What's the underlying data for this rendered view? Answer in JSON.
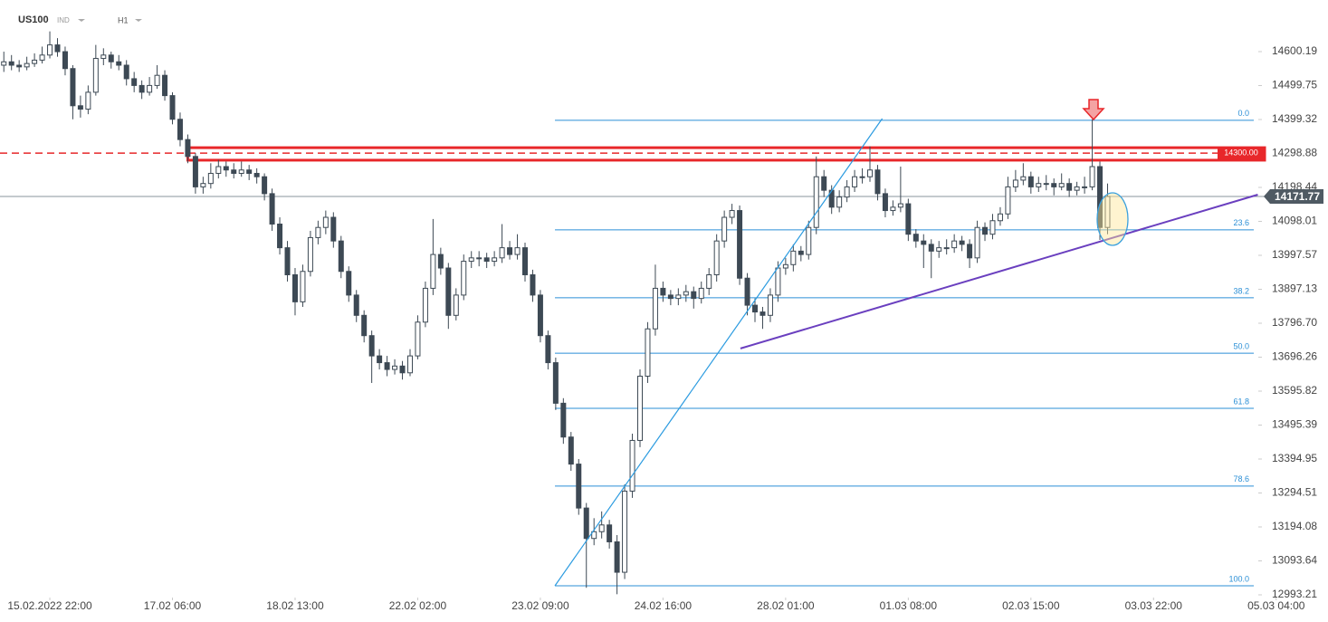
{
  "chart_data": {
    "type": "candlestick",
    "title": "US100",
    "instrument_type": "IND",
    "timeframe": "H1",
    "ylim": [
      12985.18,
      14752.84
    ],
    "yticks": [
      14600.19,
      14499.75,
      14399.32,
      14298.88,
      14198.44,
      14098.01,
      13997.57,
      13897.13,
      {
        "value": 13796.7,
        "label": "13796.70"
      },
      13696.26,
      13595.82,
      13495.39,
      13394.95,
      13294.51,
      13194.08,
      13093.64,
      12993.21
    ],
    "xlim": [
      -0.5,
      166.5
    ],
    "xticks": [
      {
        "value": 6,
        "label": "15.02.2022 22:00"
      },
      {
        "value": 22,
        "label": "17.02 06:00"
      },
      {
        "value": 38,
        "label": "18.02 13:00"
      },
      {
        "value": 54,
        "label": "22.02 02:00"
      },
      {
        "value": 70,
        "label": "23.02 09:00"
      },
      {
        "value": 86,
        "label": "24.02 16:00"
      },
      {
        "value": 102,
        "label": "28.02 01:00"
      },
      {
        "value": 118,
        "label": "01.03 08:00"
      },
      {
        "value": 134,
        "label": "02.03 15:00"
      },
      {
        "value": 150,
        "label": "03.03 22:00"
      },
      {
        "value": 166,
        "label": "05.03 04:00"
      }
    ],
    "up_color": "#ffffff",
    "down_color": "#3d4954",
    "wick_color": "#3d4954",
    "candles": [
      [
        14560,
        14600,
        14540,
        14570
      ],
      [
        14570,
        14590,
        14545,
        14560
      ],
      [
        14560,
        14575,
        14540,
        14555
      ],
      [
        14555,
        14585,
        14545,
        14565
      ],
      [
        14565,
        14595,
        14555,
        14575
      ],
      [
        14575,
        14615,
        14565,
        14590
      ],
      [
        14590,
        14660,
        14580,
        14620
      ],
      [
        14620,
        14640,
        14585,
        14600
      ],
      [
        14600,
        14615,
        14530,
        14550
      ],
      [
        14550,
        14560,
        14400,
        14440
      ],
      [
        14440,
        14470,
        14405,
        14430
      ],
      [
        14430,
        14500,
        14415,
        14480
      ],
      [
        14480,
        14620,
        14470,
        14580
      ],
      [
        14580,
        14610,
        14560,
        14590
      ],
      [
        14590,
        14600,
        14550,
        14570
      ],
      [
        14570,
        14590,
        14545,
        14560
      ],
      [
        14560,
        14575,
        14500,
        14520
      ],
      [
        14520,
        14540,
        14480,
        14500
      ],
      [
        14500,
        14515,
        14460,
        14480
      ],
      [
        14480,
        14525,
        14470,
        14500
      ],
      [
        14500,
        14560,
        14490,
        14530
      ],
      [
        14530,
        14545,
        14455,
        14470
      ],
      [
        14470,
        14480,
        14385,
        14400
      ],
      [
        14400,
        14420,
        14320,
        14340
      ],
      [
        14340,
        14355,
        14270,
        14290
      ],
      [
        14290,
        14300,
        14180,
        14200
      ],
      [
        14200,
        14230,
        14180,
        14210
      ],
      [
        14210,
        14270,
        14195,
        14240
      ],
      [
        14240,
        14280,
        14225,
        14260
      ],
      [
        14260,
        14275,
        14230,
        14250
      ],
      [
        14250,
        14270,
        14225,
        14240
      ],
      [
        14240,
        14275,
        14230,
        14250
      ],
      [
        14250,
        14265,
        14220,
        14240
      ],
      [
        14240,
        14255,
        14210,
        14230
      ],
      [
        14230,
        14240,
        14160,
        14180
      ],
      [
        14180,
        14195,
        14070,
        14090
      ],
      [
        14090,
        14110,
        14000,
        14020
      ],
      [
        14020,
        14040,
        13920,
        13940
      ],
      [
        13940,
        13960,
        13820,
        13860
      ],
      [
        13860,
        13970,
        13845,
        13950
      ],
      [
        13950,
        14070,
        13935,
        14050
      ],
      [
        14050,
        14100,
        14030,
        14080
      ],
      [
        14080,
        14130,
        14060,
        14110
      ],
      [
        14110,
        14125,
        14020,
        14040
      ],
      [
        14040,
        14055,
        13930,
        13950
      ],
      [
        13950,
        13965,
        13860,
        13880
      ],
      [
        13880,
        13895,
        13800,
        13820
      ],
      [
        13820,
        13835,
        13740,
        13760
      ],
      [
        13760,
        13775,
        13620,
        13700
      ],
      [
        13700,
        13720,
        13660,
        13680
      ],
      [
        13680,
        13700,
        13640,
        13660
      ],
      [
        13660,
        13690,
        13645,
        13670
      ],
      [
        13670,
        13685,
        13630,
        13650
      ],
      [
        13650,
        13720,
        13640,
        13700
      ],
      [
        13700,
        13820,
        13690,
        13800
      ],
      [
        13800,
        13920,
        13785,
        13900
      ],
      [
        13900,
        14105,
        13880,
        14000
      ],
      [
        14000,
        14020,
        13940,
        13960
      ],
      [
        13960,
        13975,
        13780,
        13820
      ],
      [
        13820,
        13900,
        13805,
        13880
      ],
      [
        13880,
        14000,
        13865,
        13980
      ],
      [
        13980,
        14010,
        13960,
        13990
      ],
      [
        13990,
        14010,
        13965,
        13990
      ],
      [
        13990,
        14005,
        13960,
        13980
      ],
      [
        13980,
        14010,
        13965,
        13990
      ],
      [
        13990,
        14090,
        13975,
        14020
      ],
      [
        14020,
        14040,
        13985,
        14000
      ],
      [
        14000,
        14060,
        13985,
        14020
      ],
      [
        14020,
        14035,
        13920,
        13940
      ],
      [
        13940,
        13955,
        13860,
        13880
      ],
      [
        13880,
        13895,
        13740,
        13760
      ],
      [
        13760,
        13775,
        13660,
        13680
      ],
      [
        13680,
        13695,
        13540,
        13560
      ],
      [
        13560,
        13575,
        13440,
        13460
      ],
      [
        13460,
        13475,
        13360,
        13380
      ],
      [
        13380,
        13395,
        13230,
        13250
      ],
      [
        13250,
        13265,
        13014,
        13160
      ],
      [
        13160,
        13220,
        13140,
        13180
      ],
      [
        13180,
        13240,
        13160,
        13200
      ],
      [
        13200,
        13215,
        13130,
        13150
      ],
      [
        13150,
        13170,
        12995,
        13060
      ],
      [
        13060,
        13320,
        13040,
        13300
      ],
      [
        13300,
        13470,
        13280,
        13450
      ],
      [
        13450,
        13660,
        13430,
        13640
      ],
      [
        13640,
        13800,
        13620,
        13780
      ],
      [
        13780,
        13970,
        13760,
        13900
      ],
      [
        13900,
        13920,
        13860,
        13880
      ],
      [
        13880,
        13895,
        13850,
        13870
      ],
      [
        13870,
        13900,
        13850,
        13880
      ],
      [
        13880,
        13910,
        13860,
        13890
      ],
      [
        13890,
        13905,
        13840,
        13870
      ],
      [
        13870,
        13920,
        13855,
        13900
      ],
      [
        13900,
        13960,
        13880,
        13940
      ],
      [
        13940,
        14060,
        13920,
        14040
      ],
      [
        14040,
        14130,
        14020,
        14110
      ],
      [
        14110,
        14150,
        14090,
        14130
      ],
      [
        14130,
        14145,
        13910,
        13930
      ],
      [
        13930,
        13945,
        13820,
        13850
      ],
      [
        13850,
        13870,
        13800,
        13830
      ],
      [
        13830,
        13845,
        13780,
        13820
      ],
      [
        13820,
        13900,
        13800,
        13880
      ],
      [
        13880,
        13980,
        13860,
        13960
      ],
      [
        13960,
        13990,
        13940,
        13970
      ],
      [
        13970,
        14030,
        13950,
        14010
      ],
      [
        14010,
        14025,
        13980,
        14000
      ],
      [
        14000,
        14100,
        13985,
        14080
      ],
      [
        14080,
        14290,
        14060,
        14230
      ],
      [
        14230,
        14250,
        14170,
        14190
      ],
      [
        14190,
        14205,
        14120,
        14140
      ],
      [
        14140,
        14190,
        14125,
        14170
      ],
      [
        14170,
        14220,
        14155,
        14200
      ],
      [
        14200,
        14250,
        14185,
        14230
      ],
      [
        14230,
        14255,
        14210,
        14230
      ],
      [
        14230,
        14320,
        14215,
        14250
      ],
      [
        14250,
        14265,
        14160,
        14180
      ],
      [
        14180,
        14195,
        14110,
        14130
      ],
      [
        14130,
        14160,
        14115,
        14140
      ],
      [
        14140,
        14260,
        14125,
        14150
      ],
      [
        14150,
        14165,
        14040,
        14060
      ],
      [
        14060,
        14075,
        14020,
        14040
      ],
      [
        14040,
        14060,
        13960,
        14030
      ],
      [
        14030,
        14045,
        13930,
        14010
      ],
      [
        14010,
        14040,
        13990,
        14020
      ],
      [
        14020,
        14045,
        14000,
        14020
      ],
      [
        14020,
        14060,
        14005,
        14040
      ],
      [
        14040,
        14055,
        14010,
        14030
      ],
      [
        14030,
        14045,
        13960,
        13990
      ],
      [
        13990,
        14100,
        13975,
        14080
      ],
      [
        14080,
        14095,
        14040,
        14060
      ],
      [
        14060,
        14120,
        14045,
        14100
      ],
      [
        14100,
        14140,
        14085,
        14120
      ],
      [
        14120,
        14230,
        14105,
        14200
      ],
      [
        14200,
        14250,
        14185,
        14220
      ],
      [
        14220,
        14270,
        14205,
        14230
      ],
      [
        14230,
        14245,
        14180,
        14200
      ],
      [
        14200,
        14230,
        14185,
        14210
      ],
      [
        14210,
        14235,
        14190,
        14210
      ],
      [
        14210,
        14225,
        14175,
        14200
      ],
      [
        14200,
        14240,
        14190,
        14210
      ],
      [
        14210,
        14225,
        14170,
        14190
      ],
      [
        14190,
        14215,
        14175,
        14200
      ],
      [
        14200,
        14230,
        14180,
        14200
      ],
      [
        14200,
        14400,
        14190,
        14260
      ],
      [
        14260,
        14275,
        14043,
        14080
      ],
      [
        14080,
        14210,
        14060,
        14171.77
      ]
    ],
    "last_price": 14171.77,
    "resistance": {
      "value": 14300,
      "label": "14300.00",
      "zone": [
        14279,
        14316
      ],
      "zone_start": 24,
      "color": "#e8272a"
    },
    "fibonacci": {
      "color": "#2b8fd6",
      "levels": [
        {
          "label": "0.0",
          "price": 14397
        },
        {
          "label": "23.6",
          "price": 14073
        },
        {
          "label": "38.2",
          "price": 13872
        },
        {
          "label": "50.0",
          "price": 13708
        },
        {
          "label": "61.8",
          "price": 13545
        },
        {
          "label": "78.6",
          "price": 13315
        },
        {
          "label": "100.0",
          "price": 13020
        }
      ]
    },
    "trendlines": [
      {
        "color": "#2b9be0",
        "points": [
          [
            71.9,
            13020
          ],
          [
            114.6,
            14402
          ]
        ]
      },
      {
        "color": "#6a3fbf",
        "points": [
          [
            96.1,
            13722
          ],
          [
            163.6,
            14177
          ]
        ]
      }
    ]
  }
}
